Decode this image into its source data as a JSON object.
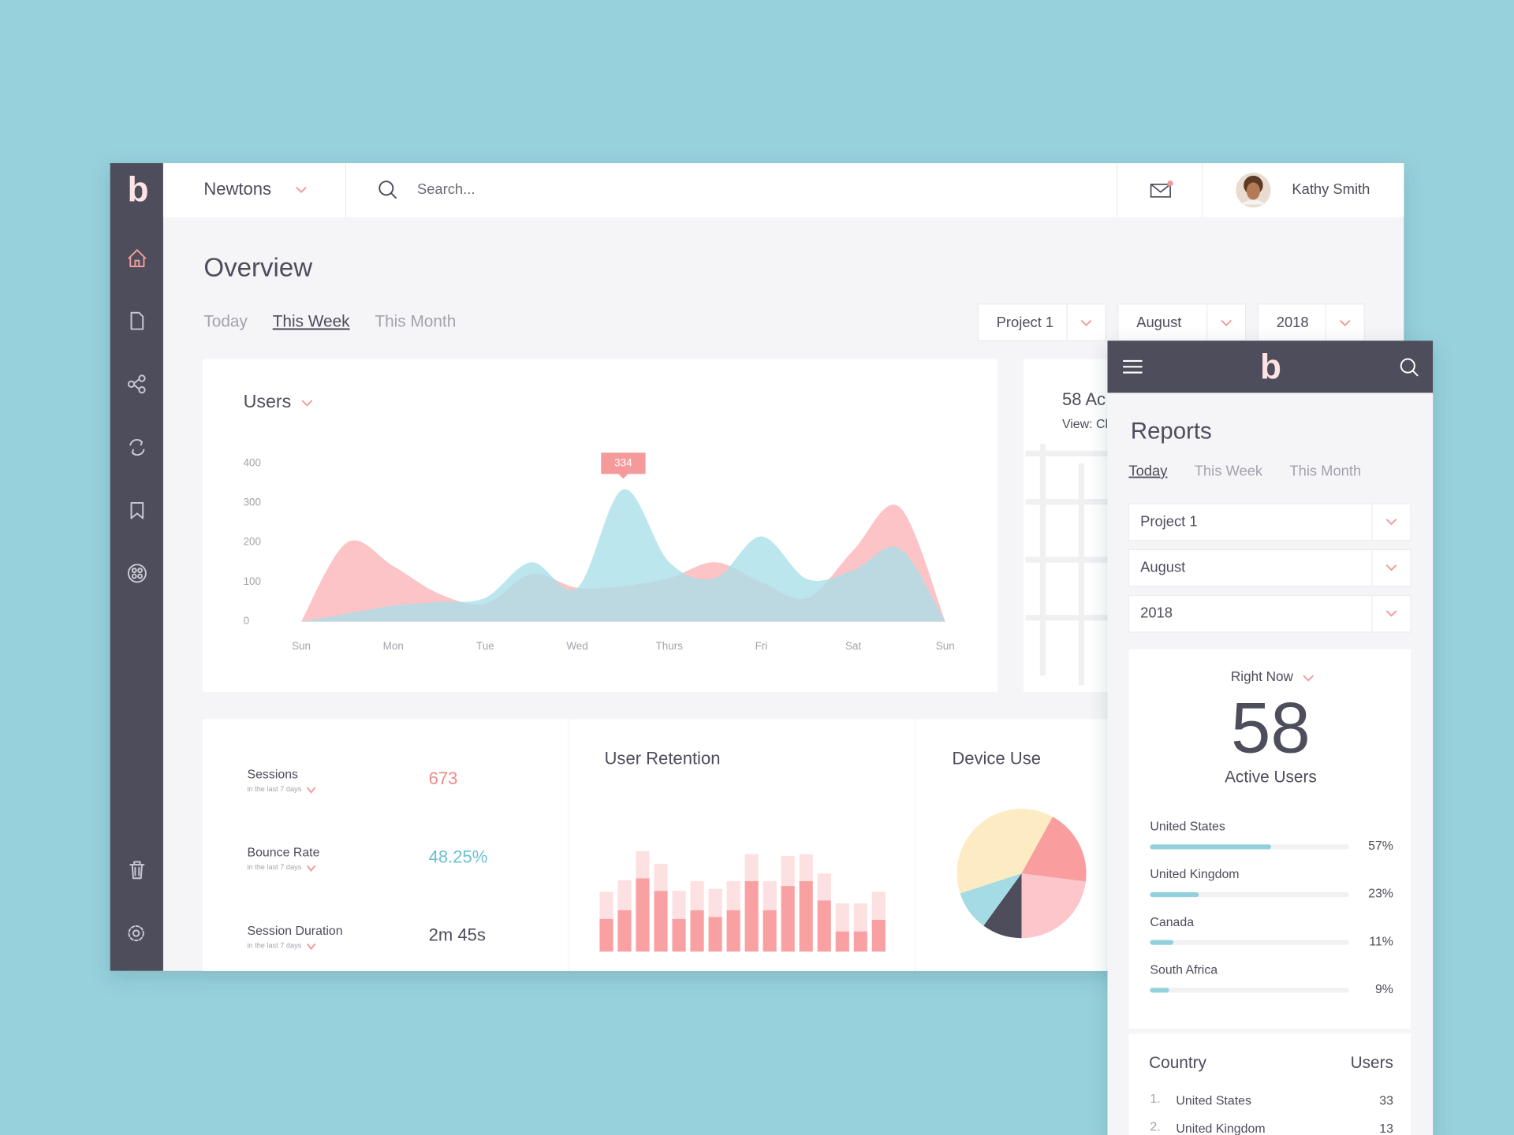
{
  "sidebar": {
    "logo": "b"
  },
  "topbar": {
    "workspace": "Newtons",
    "search_placeholder": "Search...",
    "user_name": "Kathy Smith"
  },
  "overview": {
    "title": "Overview",
    "tabs": [
      "Today",
      "This Week",
      "This Month"
    ],
    "active_tab": 1,
    "filters": [
      "Project 1",
      "August",
      "2018"
    ]
  },
  "active_card": {
    "title": "58 Ac",
    "subtitle": "View: Cl"
  },
  "stats": [
    {
      "label": "Sessions",
      "period": "in the last 7 days",
      "value": "673",
      "color": "#f08a8a"
    },
    {
      "label": "Bounce Rate",
      "period": "in the last 7 days",
      "value": "48.25%",
      "color": "#6cc0cf"
    },
    {
      "label": "Session Duration",
      "period": "in the last 7 days",
      "value": "2m 45s",
      "color": "#4e4d5c"
    }
  ],
  "chart_data": [
    {
      "type": "area",
      "title": "Users",
      "x": [
        0,
        0.5,
        1,
        1.5,
        2,
        2.5,
        3,
        3.5,
        4,
        4.5,
        5,
        5.5,
        6,
        6.5,
        7
      ],
      "xlim": [
        0,
        7
      ],
      "xticks": [
        {
          "value": 0,
          "label": "Sun"
        },
        {
          "value": 1,
          "label": "Mon"
        },
        {
          "value": 2,
          "label": "Tue"
        },
        {
          "value": 3,
          "label": "Wed"
        },
        {
          "value": 4,
          "label": "Thurs"
        },
        {
          "value": 5,
          "label": "Fri"
        },
        {
          "value": 6,
          "label": "Sat"
        },
        {
          "value": 7,
          "label": "Sun"
        }
      ],
      "ylim": [
        0,
        400
      ],
      "yticks": [
        0,
        100,
        200,
        300,
        400
      ],
      "series": [
        {
          "color": "#fbb4b6",
          "values": [
            0,
            200,
            140,
            70,
            45,
            120,
            85,
            90,
            110,
            150,
            100,
            60,
            180,
            290,
            0
          ]
        },
        {
          "color": "#a9dfe9",
          "values": [
            0,
            20,
            40,
            50,
            60,
            150,
            85,
            334,
            150,
            110,
            215,
            107,
            130,
            185,
            0
          ]
        }
      ]
    },
    {
      "type": "bar",
      "title": "User Retention",
      "stacked": true,
      "series": [
        {
          "color": "#f9a0a2",
          "values": [
            34,
            43,
            76,
            63,
            34,
            43,
            36,
            43,
            73,
            43,
            68,
            73,
            53,
            21,
            21,
            33
          ]
        },
        {
          "color": "#fde0e1",
          "values": [
            28,
            31,
            28,
            28,
            29,
            30,
            29,
            30,
            28,
            30,
            31,
            28,
            28,
            29,
            29,
            29
          ]
        }
      ]
    },
    {
      "type": "pie",
      "title": "Device Use",
      "start_angle": -108,
      "values": [
        38,
        19,
        23,
        10,
        10
      ],
      "colors": [
        "#fdebc4",
        "#f99d9f",
        "#fcc6cb",
        "#4e4d5c",
        "#a5dbe4"
      ]
    }
  ],
  "mobile": {
    "logo": "b",
    "title": "Reports",
    "tabs": [
      "Today",
      "This Week",
      "This Month"
    ],
    "active_tab": 0,
    "filters": [
      "Project 1",
      "August",
      "2018"
    ],
    "right_now": "Right Now",
    "active_users": "58",
    "active_users_label": "Active Users",
    "countries": [
      {
        "name": "United States",
        "value": 57,
        "label": "57%"
      },
      {
        "name": "United Kingdom",
        "value": 23,
        "label": "23%"
      },
      {
        "name": "Canada",
        "value": 11,
        "label": "11%"
      },
      {
        "name": "South Africa",
        "value": 9,
        "label": "9%"
      }
    ],
    "table": {
      "headers": [
        "Country",
        "Users"
      ],
      "rows": [
        [
          "1.",
          "United States",
          "33"
        ],
        [
          "2.",
          "United Kingdom",
          "13"
        ]
      ]
    }
  }
}
